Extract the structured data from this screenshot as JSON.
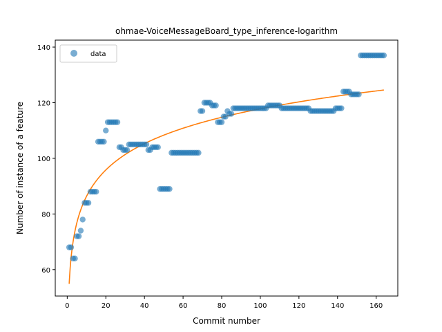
{
  "chart_data": {
    "type": "scatter",
    "title": "ohmae-VoiceMessageBoard_type_inference-logarithm",
    "xlabel": "Commit number",
    "ylabel": "Number of instance of a feature",
    "xlim": [
      -6.2,
      171.2
    ],
    "ylim": [
      50.5,
      142.5
    ],
    "xticks": [
      0,
      20,
      40,
      60,
      80,
      100,
      120,
      140,
      160
    ],
    "yticks": [
      60,
      80,
      100,
      120,
      140
    ],
    "legend": {
      "position": "top-left",
      "entries": [
        "data"
      ]
    },
    "colors": {
      "data": "#1f77b4",
      "fit": "#ff7f0e"
    },
    "series": [
      {
        "name": "data",
        "kind": "scatter",
        "segments": [
          [
            1,
            68
          ],
          [
            2,
            68
          ],
          [
            3,
            64
          ],
          [
            4,
            64
          ],
          [
            5,
            72
          ],
          [
            6,
            72
          ],
          [
            7,
            74
          ],
          [
            8,
            78
          ],
          [
            9,
            84
          ],
          [
            10,
            84
          ],
          [
            11,
            84
          ],
          [
            12,
            88
          ],
          [
            13,
            88
          ],
          [
            14,
            88
          ],
          [
            15,
            88
          ],
          [
            16,
            106
          ],
          [
            17,
            106
          ],
          [
            18,
            106
          ],
          [
            19,
            106
          ],
          [
            20,
            110
          ],
          [
            21,
            113
          ],
          [
            22,
            113
          ],
          [
            23,
            113
          ],
          [
            24,
            113
          ],
          [
            25,
            113
          ],
          [
            26,
            113
          ],
          [
            27,
            104
          ],
          [
            28,
            104
          ],
          [
            29,
            103
          ],
          [
            30,
            103
          ],
          [
            31,
            103
          ],
          [
            32,
            105
          ],
          [
            33,
            105
          ],
          [
            34,
            105
          ],
          [
            35,
            105
          ],
          [
            36,
            105
          ],
          [
            37,
            105
          ],
          [
            38,
            105
          ],
          [
            39,
            105
          ],
          [
            40,
            105
          ],
          [
            41,
            105
          ],
          [
            42,
            103
          ],
          [
            43,
            103
          ],
          [
            44,
            104
          ],
          [
            45,
            104
          ],
          [
            46,
            104
          ],
          [
            47,
            104
          ],
          [
            48,
            89
          ],
          [
            49,
            89
          ],
          [
            50,
            89
          ],
          [
            51,
            89
          ],
          [
            52,
            89
          ],
          [
            53,
            89
          ],
          [
            54,
            102
          ],
          [
            55,
            102
          ],
          [
            56,
            102
          ],
          [
            57,
            102
          ],
          [
            58,
            102
          ],
          [
            59,
            102
          ],
          [
            60,
            102
          ],
          [
            61,
            102
          ],
          [
            62,
            102
          ],
          [
            63,
            102
          ],
          [
            64,
            102
          ],
          [
            65,
            102
          ],
          [
            66,
            102
          ],
          [
            67,
            102
          ],
          [
            68,
            102
          ],
          [
            69,
            117
          ],
          [
            70,
            117
          ],
          [
            71,
            120
          ],
          [
            72,
            120
          ],
          [
            73,
            120
          ],
          [
            74,
            120
          ],
          [
            75,
            119
          ],
          [
            76,
            119
          ],
          [
            77,
            119
          ],
          [
            78,
            113
          ],
          [
            79,
            113
          ],
          [
            80,
            113
          ],
          [
            81,
            115
          ],
          [
            82,
            115
          ],
          [
            83,
            117
          ],
          [
            84,
            116
          ],
          [
            85,
            116
          ],
          [
            86,
            118
          ],
          [
            87,
            118
          ],
          [
            88,
            118
          ],
          [
            89,
            118
          ],
          [
            90,
            118
          ],
          [
            91,
            118
          ],
          [
            92,
            118
          ],
          [
            93,
            118
          ],
          [
            94,
            118
          ],
          [
            95,
            118
          ],
          [
            96,
            118
          ],
          [
            97,
            118
          ],
          [
            98,
            118
          ],
          [
            99,
            118
          ],
          [
            100,
            118
          ],
          [
            101,
            118
          ],
          [
            102,
            118
          ],
          [
            103,
            118
          ],
          [
            104,
            119
          ],
          [
            105,
            119
          ],
          [
            106,
            119
          ],
          [
            107,
            119
          ],
          [
            108,
            119
          ],
          [
            109,
            119
          ],
          [
            110,
            119
          ],
          [
            111,
            118
          ],
          [
            112,
            118
          ],
          [
            113,
            118
          ],
          [
            114,
            118
          ],
          [
            115,
            118
          ],
          [
            116,
            118
          ],
          [
            117,
            118
          ],
          [
            118,
            118
          ],
          [
            119,
            118
          ],
          [
            120,
            118
          ],
          [
            121,
            118
          ],
          [
            122,
            118
          ],
          [
            123,
            118
          ],
          [
            124,
            118
          ],
          [
            125,
            118
          ],
          [
            126,
            117
          ],
          [
            127,
            117
          ],
          [
            128,
            117
          ],
          [
            129,
            117
          ],
          [
            130,
            117
          ],
          [
            131,
            117
          ],
          [
            132,
            117
          ],
          [
            133,
            117
          ],
          [
            134,
            117
          ],
          [
            135,
            117
          ],
          [
            136,
            117
          ],
          [
            137,
            117
          ],
          [
            138,
            117
          ],
          [
            139,
            118
          ],
          [
            140,
            118
          ],
          [
            141,
            118
          ],
          [
            142,
            118
          ],
          [
            143,
            124
          ],
          [
            144,
            124
          ],
          [
            145,
            124
          ],
          [
            146,
            124
          ],
          [
            147,
            123
          ],
          [
            148,
            123
          ],
          [
            149,
            123
          ],
          [
            150,
            123
          ],
          [
            151,
            123
          ],
          [
            152,
            137
          ],
          [
            153,
            137
          ],
          [
            154,
            137
          ],
          [
            155,
            137
          ],
          [
            156,
            137
          ],
          [
            157,
            137
          ],
          [
            158,
            137
          ],
          [
            159,
            137
          ],
          [
            160,
            137
          ],
          [
            161,
            137
          ],
          [
            162,
            137
          ],
          [
            163,
            137
          ],
          [
            164,
            137
          ]
        ]
      },
      {
        "kind": "line",
        "fit": {
          "model": "logarithm",
          "a": 54.9,
          "b": 13.66,
          "x_from": 1,
          "x_to": 164
        }
      }
    ]
  }
}
